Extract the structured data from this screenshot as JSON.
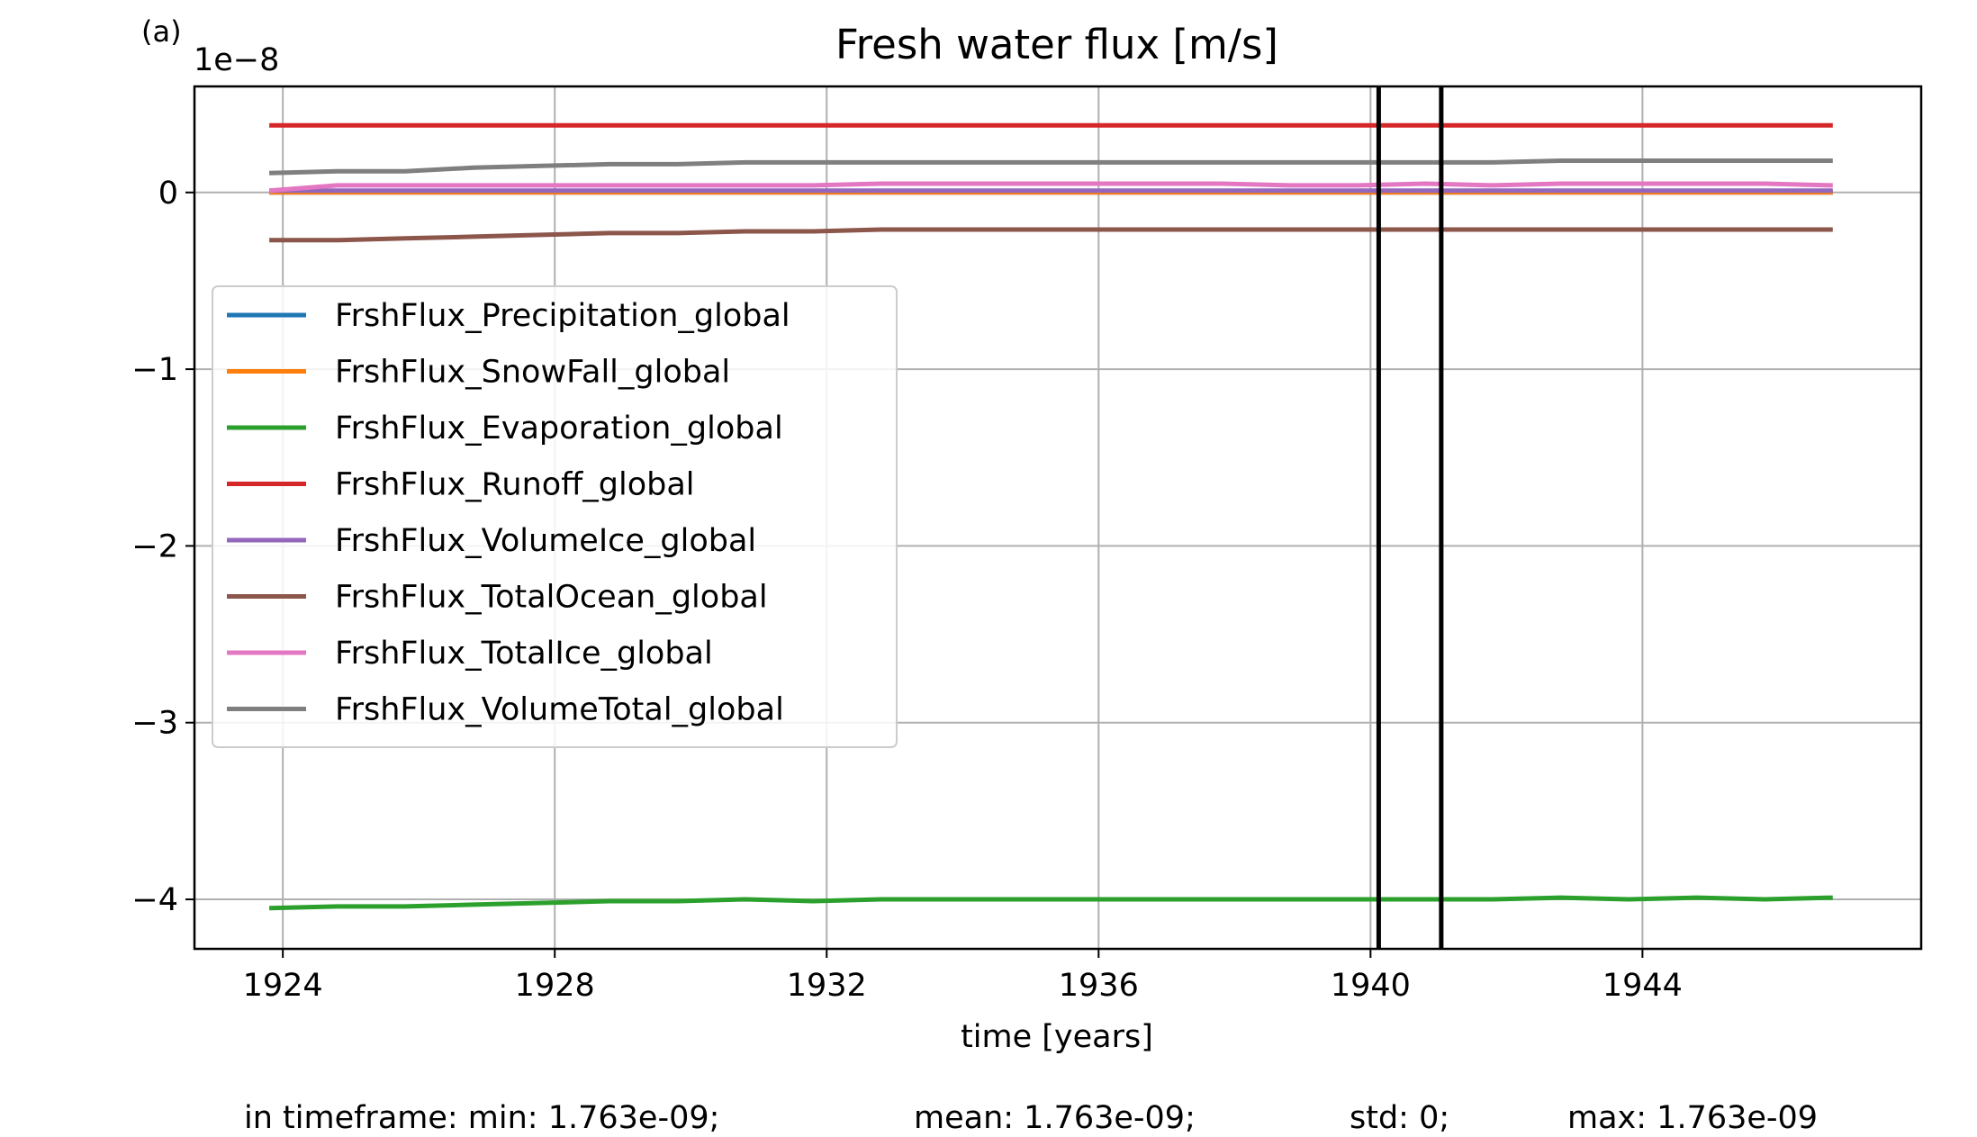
{
  "panel_label": "(a)",
  "stats": {
    "min": "in timeframe: min: 1.763e-09;",
    "mean": "mean: 1.763e-09;",
    "std": "std: 0;",
    "max": "max: 1.763e-09"
  },
  "chart_data": {
    "type": "line",
    "title": "Fresh water flux [m/s]",
    "xlabel": "time [years]",
    "ylabel": "",
    "y_offset_label": "1e−8",
    "y_scale_factor": 1e-08,
    "xlim": [
      1922.7,
      1948.1
    ],
    "ylim": [
      -4.28,
      0.6
    ],
    "xticks": [
      1924,
      1928,
      1932,
      1936,
      1940,
      1944
    ],
    "xtick_labels": [
      "1924",
      "1928",
      "1932",
      "1936",
      "1940",
      "1944"
    ],
    "yticks": [
      0,
      -1,
      -2,
      -3,
      -4
    ],
    "ytick_labels": [
      "0",
      "−1",
      "−2",
      "−3",
      "−4"
    ],
    "grid": true,
    "legend_position": "center-left",
    "vertical_lines": [
      1940.12,
      1941.04
    ],
    "vertical_line_color": "#000000",
    "x": [
      1923.8,
      1924.8,
      1925.8,
      1926.8,
      1927.8,
      1928.8,
      1929.8,
      1930.8,
      1931.8,
      1932.8,
      1933.8,
      1934.8,
      1935.8,
      1936.8,
      1937.8,
      1938.8,
      1939.8,
      1940.8,
      1941.8,
      1942.8,
      1943.8,
      1944.8,
      1945.8,
      1946.8
    ],
    "series": [
      {
        "name": "FrshFlux_Precipitation_global",
        "color": "#1f77b4",
        "values": [
          0,
          0,
          0,
          0,
          0,
          0,
          0,
          0,
          0,
          0,
          0,
          0,
          0,
          0,
          0,
          0,
          0,
          0,
          0,
          0,
          0,
          0,
          0,
          0
        ]
      },
      {
        "name": "FrshFlux_SnowFall_global",
        "color": "#ff7f0e",
        "values": [
          0,
          0,
          0,
          0,
          0,
          0,
          0,
          0,
          0,
          0,
          0,
          0,
          0,
          0,
          0,
          0,
          0,
          0,
          0,
          0,
          0,
          0,
          0,
          0
        ]
      },
      {
        "name": "FrshFlux_Evaporation_global",
        "color": "#2ca02c",
        "values": [
          -4.05,
          -4.04,
          -4.04,
          -4.03,
          -4.02,
          -4.01,
          -4.01,
          -4.0,
          -4.01,
          -4.0,
          -4.0,
          -4.0,
          -4.0,
          -4.0,
          -4.0,
          -4.0,
          -4.0,
          -4.0,
          -4.0,
          -3.99,
          -4.0,
          -3.99,
          -4.0,
          -3.99
        ]
      },
      {
        "name": "FrshFlux_Runoff_global",
        "color": "#d62728",
        "values": [
          0.38,
          0.38,
          0.38,
          0.38,
          0.38,
          0.38,
          0.38,
          0.38,
          0.38,
          0.38,
          0.38,
          0.38,
          0.38,
          0.38,
          0.38,
          0.38,
          0.38,
          0.38,
          0.38,
          0.38,
          0.38,
          0.38,
          0.38,
          0.38
        ]
      },
      {
        "name": "FrshFlux_VolumeIce_global",
        "color": "#9467bd",
        "values": [
          0.01,
          0.01,
          0.01,
          0.01,
          0.01,
          0.01,
          0.01,
          0.01,
          0.01,
          0.01,
          0.01,
          0.01,
          0.01,
          0.01,
          0.01,
          0.01,
          0.01,
          0.01,
          0.01,
          0.01,
          0.01,
          0.01,
          0.01,
          0.01
        ]
      },
      {
        "name": "FrshFlux_TotalOcean_global",
        "color": "#8c564b",
        "values": [
          -0.27,
          -0.27,
          -0.26,
          -0.25,
          -0.24,
          -0.23,
          -0.23,
          -0.22,
          -0.22,
          -0.21,
          -0.21,
          -0.21,
          -0.21,
          -0.21,
          -0.21,
          -0.21,
          -0.21,
          -0.21,
          -0.21,
          -0.21,
          -0.21,
          -0.21,
          -0.21,
          -0.21
        ]
      },
      {
        "name": "FrshFlux_TotalIce_global",
        "color": "#e377c2",
        "values": [
          0.01,
          0.04,
          0.04,
          0.04,
          0.04,
          0.04,
          0.04,
          0.04,
          0.04,
          0.05,
          0.05,
          0.05,
          0.05,
          0.05,
          0.05,
          0.04,
          0.04,
          0.05,
          0.04,
          0.05,
          0.05,
          0.05,
          0.05,
          0.04
        ]
      },
      {
        "name": "FrshFlux_VolumeTotal_global",
        "color": "#7f7f7f",
        "values": [
          0.11,
          0.12,
          0.12,
          0.14,
          0.15,
          0.16,
          0.16,
          0.17,
          0.17,
          0.17,
          0.17,
          0.17,
          0.17,
          0.17,
          0.17,
          0.17,
          0.17,
          0.17,
          0.17,
          0.18,
          0.18,
          0.18,
          0.18,
          0.18
        ]
      }
    ]
  }
}
